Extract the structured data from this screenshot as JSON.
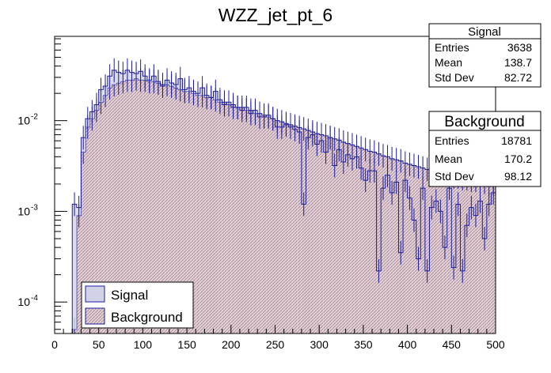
{
  "chart_data": {
    "type": "histogram",
    "title": "WZZ_jet_pt_6",
    "xlabel": "",
    "ylabel": "",
    "x_range": [
      0,
      500
    ],
    "y_scale": "log",
    "y_range": [
      4.5e-05,
      0.085
    ],
    "x_ticks": [
      0,
      50,
      100,
      150,
      200,
      250,
      300,
      350,
      400,
      450,
      500
    ],
    "y_ticks": [
      {
        "value": 0.01,
        "base": "10",
        "exp": "-2"
      },
      {
        "value": 0.001,
        "base": "10",
        "exp": "-3"
      },
      {
        "value": 0.0001,
        "base": "10",
        "exp": "-4"
      }
    ],
    "bin_width": 5,
    "colors": {
      "signal_fill": "#d2d2e6",
      "signal_line": "#1c1ca0",
      "background_fill": "#e3d0d6",
      "background_line": "#1c1ca0",
      "hatch": "#a48a98"
    },
    "series": [
      {
        "name": "Signal",
        "x_centers": [
          22.5,
          27.5,
          32.5,
          37.5,
          42.5,
          47.5,
          52.5,
          57.5,
          62.5,
          67.5,
          72.5,
          77.5,
          82.5,
          87.5,
          92.5,
          97.5,
          102.5,
          107.5,
          112.5,
          117.5,
          122.5,
          127.5,
          132.5,
          137.5,
          142.5,
          147.5,
          152.5,
          157.5,
          162.5,
          167.5,
          172.5,
          177.5,
          182.5,
          187.5,
          192.5,
          197.5,
          202.5,
          207.5,
          212.5,
          217.5,
          222.5,
          227.5,
          232.5,
          237.5,
          242.5,
          247.5,
          252.5,
          257.5,
          262.5,
          267.5,
          272.5,
          277.5,
          282.5,
          287.5,
          292.5,
          297.5,
          302.5,
          307.5,
          312.5,
          317.5,
          322.5,
          327.5,
          332.5,
          337.5,
          342.5,
          347.5,
          352.5,
          357.5,
          362.5,
          367.5,
          372.5,
          377.5,
          382.5,
          387.5,
          392.5,
          397.5,
          402.5,
          407.5,
          412.5,
          417.5,
          422.5,
          427.5,
          432.5,
          437.5,
          442.5,
          447.5,
          452.5,
          457.5,
          462.5,
          467.5,
          472.5,
          477.5,
          482.5,
          487.5,
          492.5,
          497.5
        ],
        "values": [
          0.0012,
          0.0011,
          0.0065,
          0.0105,
          0.0125,
          0.015,
          0.022,
          0.024,
          0.031,
          0.036,
          0.034,
          0.033,
          0.036,
          0.034,
          0.033,
          0.035,
          0.031,
          0.028,
          0.031,
          0.027,
          0.024,
          0.028,
          0.026,
          0.025,
          0.029,
          0.022,
          0.023,
          0.021,
          0.02,
          0.023,
          0.019,
          0.018,
          0.021,
          0.017,
          0.015,
          0.016,
          0.014,
          0.014,
          0.013,
          0.014,
          0.012,
          0.013,
          0.011,
          0.011,
          0.0115,
          0.0105,
          0.0085,
          0.0085,
          0.009,
          0.0085,
          0.008,
          0.0075,
          0.0012,
          0.0065,
          0.007,
          0.0055,
          0.006,
          0.0045,
          0.0065,
          0.0032,
          0.0048,
          0.0035,
          0.0042,
          0.0038,
          0.004,
          0.003,
          0.0022,
          0.0028,
          0.0028,
          0.00022,
          0.0018,
          0.0025,
          0.0016,
          0.0021,
          0.00035,
          0.0022,
          0.0014,
          0.0008,
          0.0003,
          0.0018,
          0.00022,
          0.0011,
          0.0013,
          0.001,
          0.0004,
          0.0018,
          0.00024,
          0.0012,
          0.00022,
          0.0007,
          0.0011,
          0.0009,
          0.0013,
          0.0005,
          0.0012,
          0.0016
        ],
        "legend_label": "Signal",
        "stats": {
          "header": "Signal",
          "entries_label": "Entries",
          "entries": "3638",
          "mean_label": "Mean",
          "mean": "138.7",
          "std_label": "Std Dev",
          "std": "82.72"
        }
      },
      {
        "name": "Background",
        "x_centers": [
          22.5,
          27.5,
          32.5,
          37.5,
          42.5,
          47.5,
          52.5,
          57.5,
          62.5,
          67.5,
          72.5,
          77.5,
          82.5,
          87.5,
          92.5,
          97.5,
          102.5,
          107.5,
          112.5,
          117.5,
          122.5,
          127.5,
          132.5,
          137.5,
          142.5,
          147.5,
          152.5,
          157.5,
          162.5,
          167.5,
          172.5,
          177.5,
          182.5,
          187.5,
          192.5,
          197.5,
          202.5,
          207.5,
          212.5,
          217.5,
          222.5,
          227.5,
          232.5,
          237.5,
          242.5,
          247.5,
          252.5,
          257.5,
          262.5,
          267.5,
          272.5,
          277.5,
          282.5,
          287.5,
          292.5,
          297.5,
          302.5,
          307.5,
          312.5,
          317.5,
          322.5,
          327.5,
          332.5,
          337.5,
          342.5,
          347.5,
          352.5,
          357.5,
          362.5,
          367.5,
          372.5,
          377.5,
          382.5,
          387.5,
          392.5,
          397.5,
          402.5,
          407.5,
          412.5,
          417.5,
          422.5,
          427.5,
          432.5,
          437.5,
          442.5,
          447.5,
          452.5,
          457.5,
          462.5,
          467.5,
          472.5,
          477.5,
          482.5,
          487.5,
          492.5,
          497.5
        ],
        "values": [
          5e-05,
          0.0009,
          0.0045,
          0.0085,
          0.0105,
          0.013,
          0.016,
          0.019,
          0.023,
          0.025,
          0.026,
          0.027,
          0.028,
          0.028,
          0.029,
          0.028,
          0.028,
          0.027,
          0.027,
          0.026,
          0.025,
          0.025,
          0.024,
          0.023,
          0.022,
          0.021,
          0.021,
          0.02,
          0.019,
          0.019,
          0.018,
          0.018,
          0.017,
          0.016,
          0.016,
          0.015,
          0.015,
          0.014,
          0.014,
          0.013,
          0.013,
          0.012,
          0.012,
          0.0115,
          0.011,
          0.0105,
          0.01,
          0.0097,
          0.0093,
          0.009,
          0.0087,
          0.0084,
          0.0081,
          0.0078,
          0.0075,
          0.0072,
          0.007,
          0.0068,
          0.0065,
          0.0063,
          0.0061,
          0.0058,
          0.0056,
          0.0054,
          0.0052,
          0.005,
          0.0048,
          0.0046,
          0.0045,
          0.0043,
          0.0041,
          0.004,
          0.0038,
          0.0037,
          0.0036,
          0.0034,
          0.0033,
          0.0032,
          0.0031,
          0.003,
          0.0029,
          0.0028,
          0.0027,
          0.0026,
          0.0026,
          0.0025,
          0.0024,
          0.0024,
          0.0023,
          0.0023,
          0.0022,
          0.0022,
          0.0021,
          0.0021,
          0.002,
          0.002
        ],
        "legend_label": "Background",
        "stats": {
          "header": "Background",
          "entries_label": "Entries",
          "entries": "18781",
          "mean_label": "Mean",
          "mean": "170.2",
          "std_label": "Std Dev",
          "std": "98.12"
        }
      }
    ],
    "legend_position": "bottom-left"
  }
}
